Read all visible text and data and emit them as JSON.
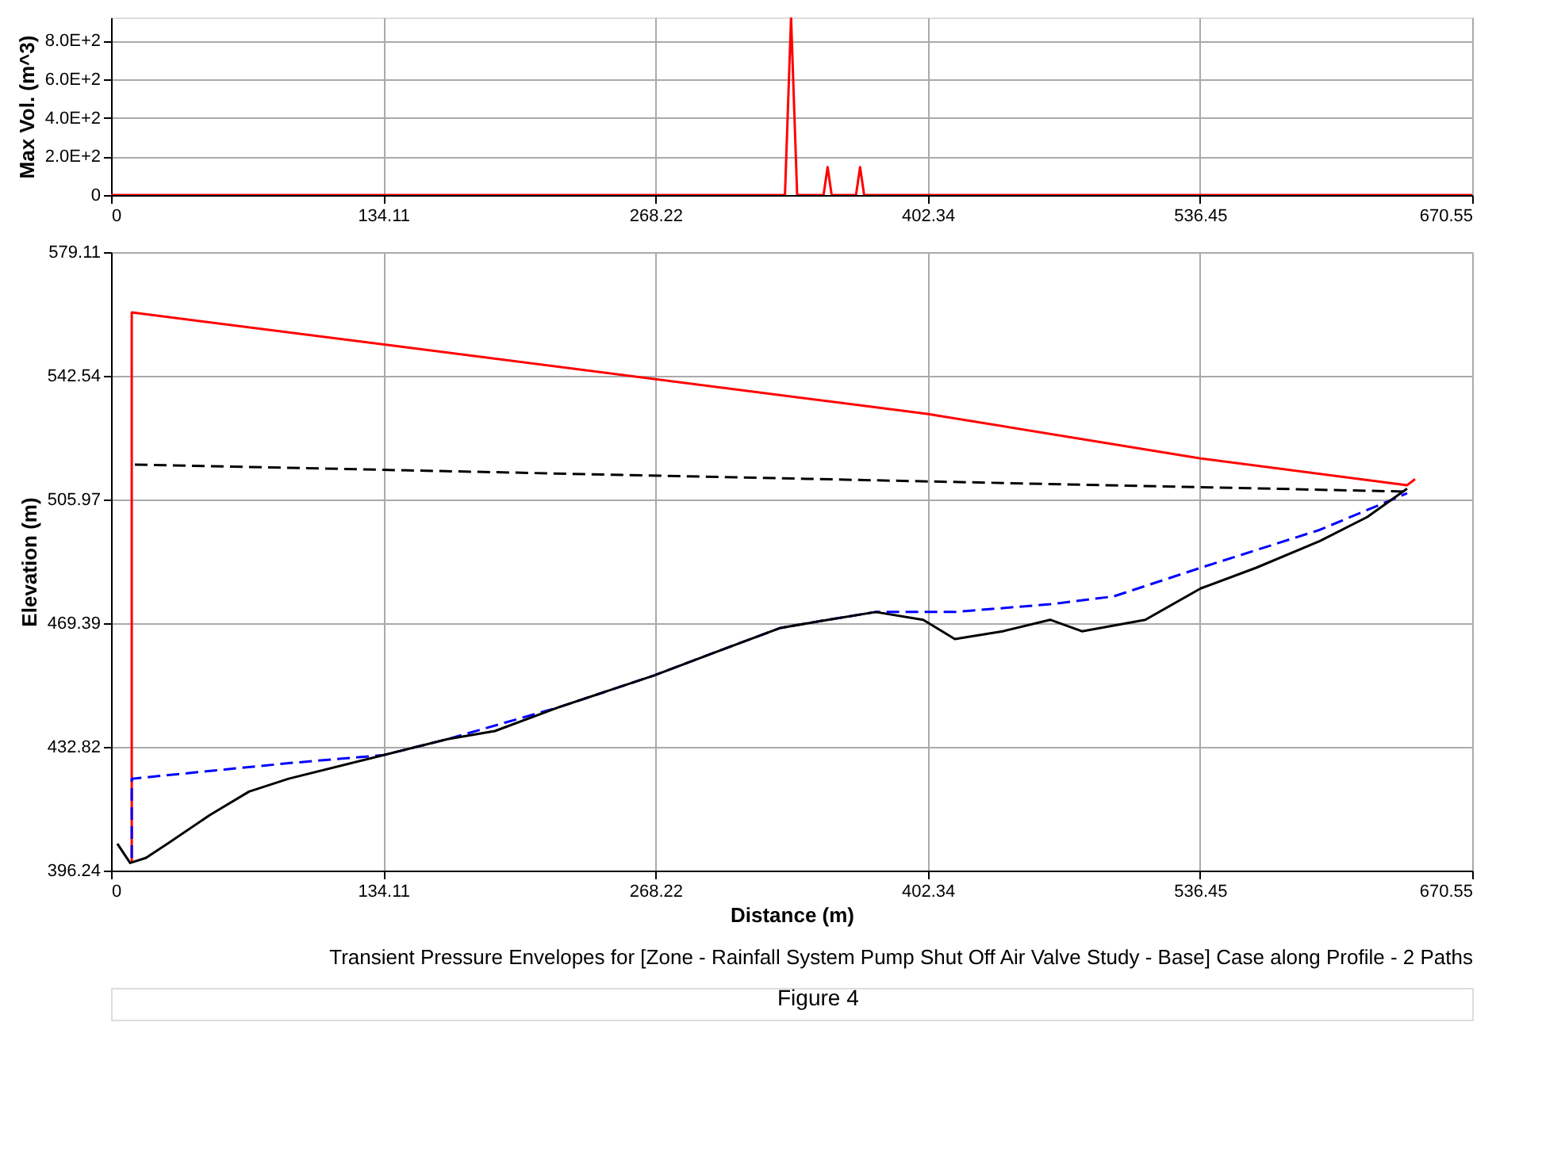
{
  "chart_data": [
    {
      "type": "line",
      "ylabel": "Max Vol. (m^3)",
      "xlim": [
        0,
        670.55
      ],
      "ylim": [
        0,
        920
      ],
      "xticks": [
        0,
        134.11,
        268.22,
        402.34,
        536.45,
        670.55
      ],
      "yticks": [
        0,
        {
          "value": 200,
          "label": "2.0E+2"
        },
        {
          "value": 400,
          "label": "4.0E+2"
        },
        {
          "value": 600,
          "label": "6.0E+2"
        },
        {
          "value": 800,
          "label": "8.0E+2"
        }
      ],
      "grid": true,
      "series": [
        {
          "color": "#ff0000",
          "line_style": "solid",
          "x": [
            0,
            332,
            335,
            338,
            351,
            353,
            355,
            367,
            369,
            371,
            670.55
          ],
          "values": [
            0,
            0,
            920,
            0,
            0,
            145,
            0,
            0,
            145,
            0,
            0
          ]
        }
      ]
    },
    {
      "type": "line",
      "title": "Transient Pressure Envelopes for [Zone - Rainfall System Pump Shut Off Air Valve Study - Base] Case along Profile - 2 Paths",
      "xlabel": "Distance (m)",
      "ylabel": "Elevation (m)",
      "xlim": [
        0,
        670.55
      ],
      "ylim": [
        396.24,
        579.11
      ],
      "xticks": [
        0,
        134.11,
        268.22,
        402.34,
        536.45,
        670.55
      ],
      "yticks": [
        396.24,
        432.82,
        469.39,
        505.97,
        542.54,
        579.11
      ],
      "grid": true,
      "annotations": [
        "Figure 4"
      ],
      "series": [
        {
          "color": "#ff0000",
          "line_style": "solid",
          "x": [
            10.2,
            10.2,
            402,
            536.9,
            638.5,
            642.4
          ],
          "values": [
            398.5,
            561.3,
            531.3,
            518.1,
            510.2,
            512.0
          ]
        },
        {
          "color": "#000000",
          "line_style": "dashed",
          "x": [
            11.7,
            638.5
          ],
          "values": [
            516.3,
            508.3
          ]
        },
        {
          "color": "#0000ff",
          "line_style": "dashed",
          "x": [
            10.2,
            10.2,
            87.5,
            134.4,
            165.7,
            220.4,
            267.3,
            298.5,
            329.8,
            353.2,
            376.7,
            415.7,
            462.6,
            493.9,
            536.9,
            595.5,
            638.5
          ],
          "values": [
            400.0,
            423.4,
            428.0,
            430.4,
            435.1,
            444.5,
            453.9,
            461.0,
            468.0,
            470.4,
            472.7,
            472.7,
            475.0,
            477.3,
            485.8,
            497.0,
            507.8
          ]
        },
        {
          "color": "#000000",
          "line_style": "solid",
          "x": [
            3.1,
            9.4,
            17.2,
            28.9,
            48.5,
            68,
            87.5,
            134.4,
            165.7,
            189.1,
            220.4,
            267.3,
            298.5,
            329.8,
            353.2,
            376.7,
            400.1,
            415.7,
            439.2,
            462.6,
            478.3,
            509.5,
            536.9,
            564.2,
            595.5,
            618.9,
            638.5
          ],
          "values": [
            404.2,
            398.5,
            400.0,
            404.6,
            412.6,
            419.6,
            423.4,
            430.4,
            435.1,
            437.5,
            444.5,
            453.9,
            461.0,
            468.0,
            470.4,
            472.7,
            470.4,
            464.7,
            467.0,
            470.4,
            467.0,
            470.4,
            479.7,
            485.8,
            493.7,
            500.8,
            509.2
          ]
        }
      ]
    }
  ]
}
